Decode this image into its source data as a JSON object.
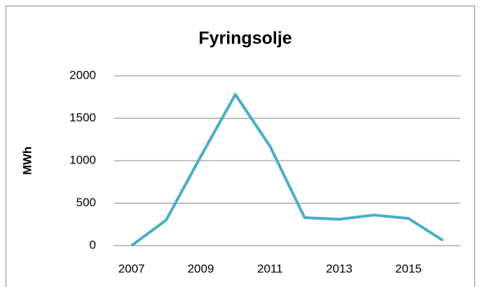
{
  "chart_data": {
    "type": "line",
    "title": "Fyringsolje",
    "y_label": "MWh",
    "categories": [
      "2007",
      null,
      "2009",
      null,
      "2011",
      null,
      "2013",
      null,
      "2015",
      null
    ],
    "series": [
      {
        "name": "Fyringsolje",
        "color": "#4bacc6",
        "values": [
          0,
          300,
          1050,
          1780,
          1170,
          330,
          310,
          360,
          320,
          60
        ]
      }
    ],
    "ylim": [
      0,
      2000
    ],
    "yticks": [
      0,
      500,
      1000,
      1500,
      2000
    ],
    "grid": true
  }
}
